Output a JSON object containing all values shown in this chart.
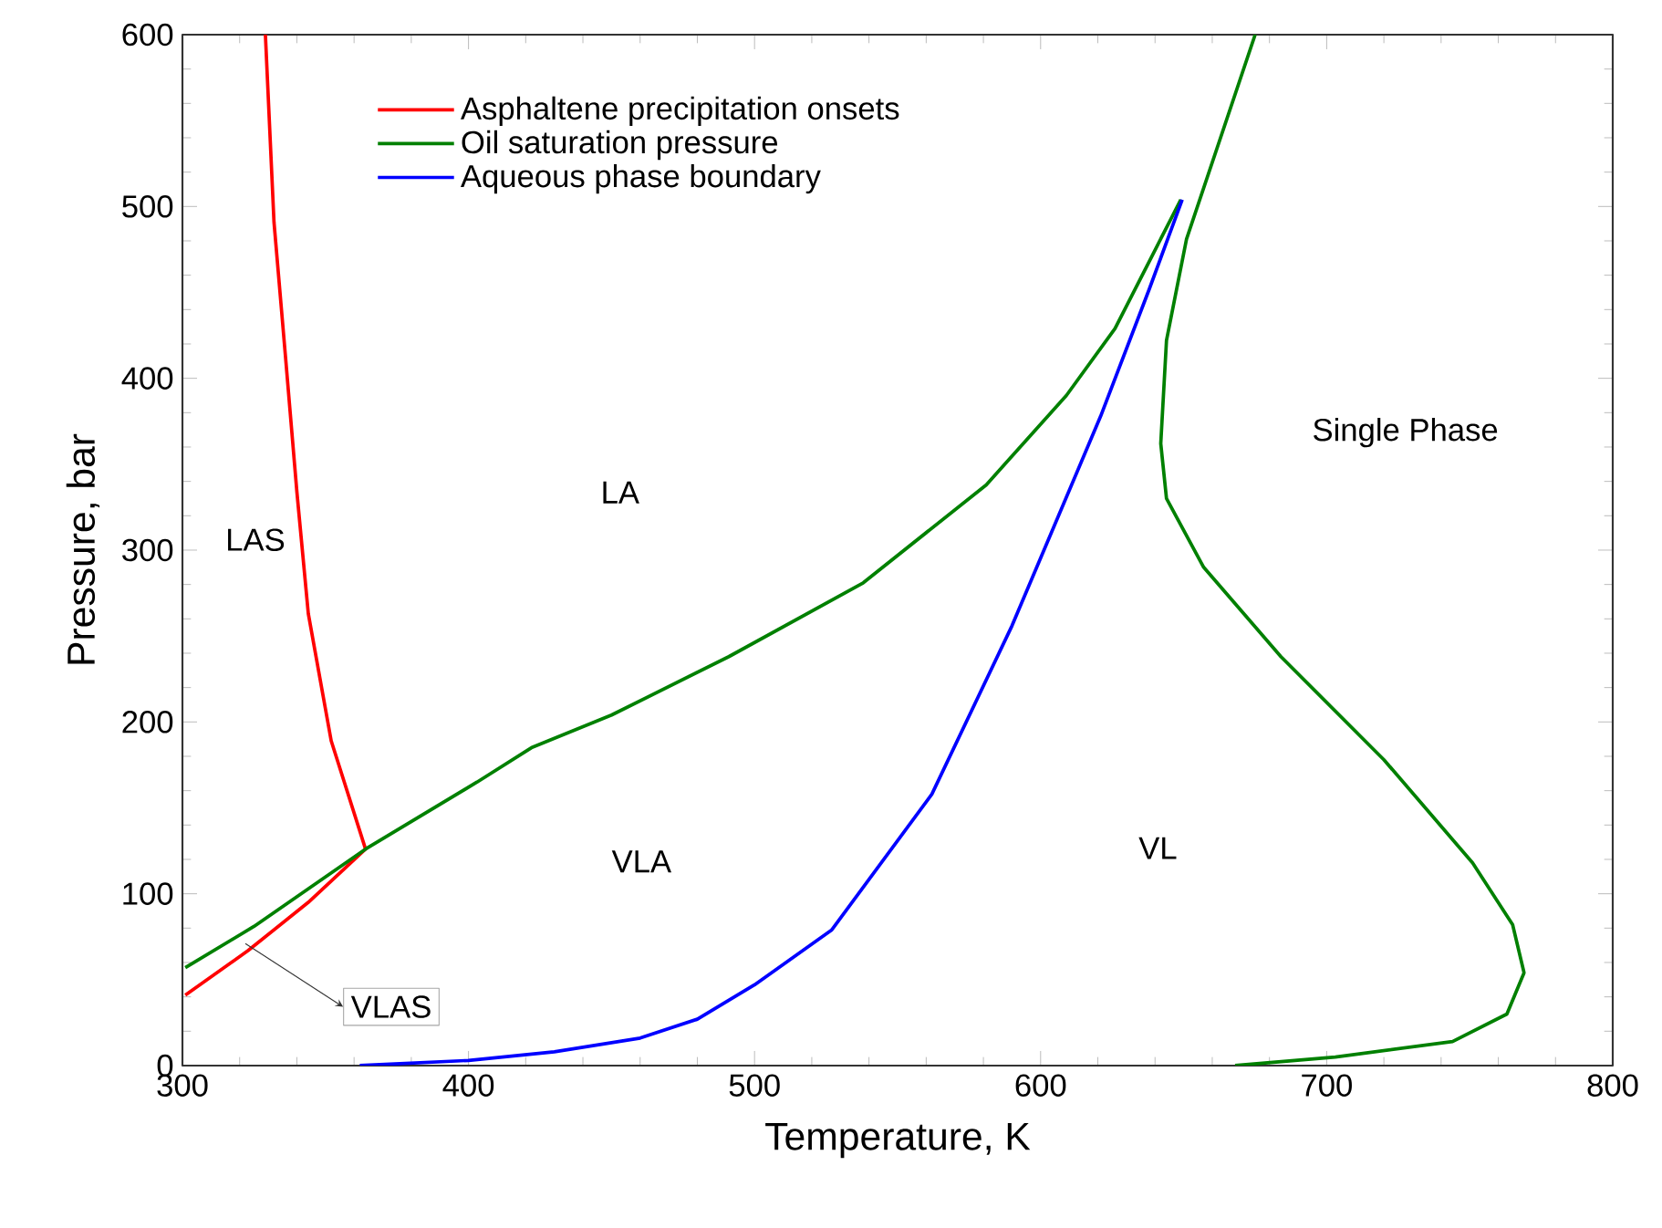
{
  "chart_data": {
    "type": "line",
    "xlabel": "Temperature, K",
    "ylabel": "Pressure, bar",
    "xlim": [
      300,
      800
    ],
    "ylim": [
      0,
      600
    ],
    "xticks": [
      300,
      400,
      500,
      600,
      700,
      800
    ],
    "yticks": [
      0,
      100,
      200,
      300,
      400,
      500,
      600
    ],
    "grid": false,
    "legend": "top left",
    "marker": "none",
    "line_style": "solid",
    "series": [
      {
        "name": "Asphaltene precipitation onsets",
        "color": "#ff0000",
        "x": [
          301,
          323,
          344,
          364,
          352,
          344,
          340,
          336,
          332,
          329
        ],
        "values": [
          41,
          67,
          95,
          126,
          189,
          263,
          334,
          413,
          491,
          600
        ]
      },
      {
        "name": "Oil saturation pressure",
        "color": "#008000",
        "x": [
          301,
          325,
          364,
          403,
          422,
          450,
          491,
          538,
          581,
          609,
          626,
          649,
          null,
          675,
          651,
          644,
          642,
          644,
          657,
          684,
          720,
          751,
          765,
          769,
          763,
          744,
          703,
          668
        ],
        "values": [
          57,
          81,
          126,
          165,
          185,
          204,
          238,
          281,
          338,
          390,
          429,
          504,
          null,
          600,
          481,
          422,
          362,
          330,
          290,
          238,
          178,
          118,
          82,
          54,
          30,
          14,
          5,
          0
        ]
      },
      {
        "name": "Aqueous phase boundary",
        "color": "#0000ff",
        "x": [
          362,
          400,
          430,
          460,
          480,
          500,
          527,
          562,
          590,
          621,
          638,
          649.5
        ],
        "values": [
          0,
          3,
          8,
          16,
          27,
          47,
          79,
          158,
          256,
          378,
          452,
          504
        ]
      }
    ],
    "annotations": [
      "LAS",
      "LA",
      "VLA",
      "VL",
      "Single Phase",
      {
        "text": "VLAS",
        "x": 322,
        "y": 71
      }
    ]
  }
}
